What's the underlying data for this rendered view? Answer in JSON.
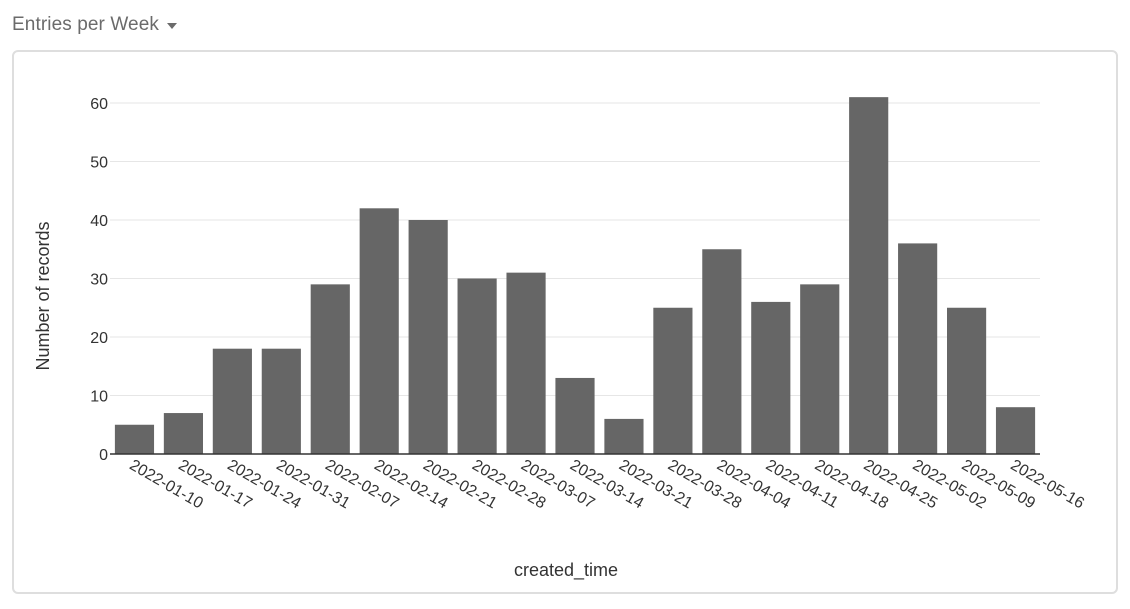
{
  "widget": {
    "title": "Entries per Week",
    "menu_icon": "caret-down-icon"
  },
  "colors": {
    "bar": "#666666",
    "grid": "#e6e6e6",
    "axis": "#333333",
    "panel_border": "#dedede"
  },
  "chart_data": {
    "type": "bar",
    "xlabel": "created_time",
    "ylabel": "Number of records",
    "ylim": [
      0,
      60
    ],
    "yticks": [
      0,
      10,
      20,
      30,
      40,
      50,
      60
    ],
    "grid": true,
    "categories": [
      "2022-01-10",
      "2022-01-17",
      "2022-01-24",
      "2022-01-31",
      "2022-02-07",
      "2022-02-14",
      "2022-02-21",
      "2022-02-28",
      "2022-03-07",
      "2022-03-14",
      "2022-03-21",
      "2022-03-28",
      "2022-04-04",
      "2022-04-11",
      "2022-04-18",
      "2022-04-25",
      "2022-05-02",
      "2022-05-09",
      "2022-05-16"
    ],
    "values": [
      5,
      7,
      18,
      18,
      29,
      42,
      40,
      30,
      31,
      13,
      6,
      25,
      35,
      26,
      29,
      61,
      36,
      25,
      8
    ]
  }
}
